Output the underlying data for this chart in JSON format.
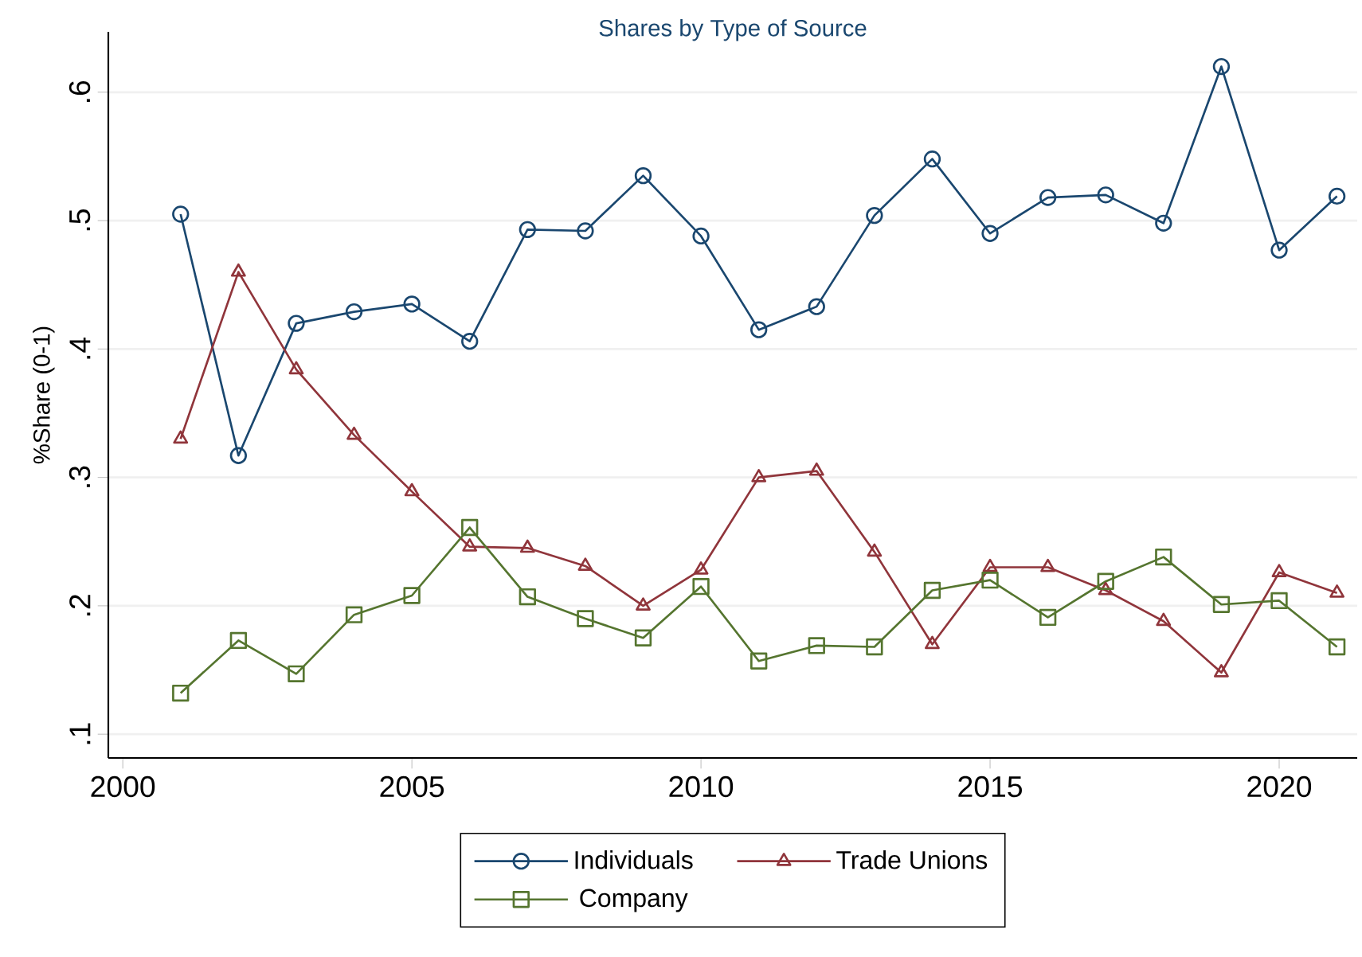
{
  "chart_data": {
    "type": "line",
    "title": "Shares by Type of Source",
    "ylabel": "%Share (0-1)",
    "x": [
      2001,
      2002,
      2003,
      2004,
      2005,
      2006,
      2007,
      2008,
      2009,
      2010,
      2011,
      2012,
      2013,
      2014,
      2015,
      2016,
      2017,
      2018,
      2019,
      2020,
      2021
    ],
    "xlim": [
      1999.75,
      2021.35
    ],
    "xticks": [
      2000,
      2005,
      2010,
      2015,
      2020
    ],
    "ylim": [
      0.0815,
      0.647
    ],
    "yticks": [
      {
        "value": 0.1,
        "label": ".1"
      },
      {
        "value": 0.2,
        "label": ".2"
      },
      {
        "value": 0.3,
        "label": ".3"
      },
      {
        "value": 0.4,
        "label": ".4"
      },
      {
        "value": 0.5,
        "label": ".5"
      },
      {
        "value": 0.6,
        "label": ".6"
      }
    ],
    "grid": "y",
    "legend": "bottom",
    "line_style": "solid",
    "series": [
      {
        "name": "Individuals",
        "color": "#1a476f",
        "marker": "circle",
        "values": [
          0.505,
          0.317,
          0.42,
          0.429,
          0.435,
          0.406,
          0.493,
          0.492,
          0.535,
          0.488,
          0.415,
          0.433,
          0.504,
          0.548,
          0.49,
          0.518,
          0.52,
          0.498,
          0.62,
          0.477,
          0.519
        ]
      },
      {
        "name": "Trade Unions",
        "color": "#90353b",
        "marker": "triangle",
        "values": [
          0.33,
          0.46,
          0.384,
          0.333,
          0.289,
          0.246,
          0.245,
          0.231,
          0.2,
          0.228,
          0.3,
          0.305,
          0.242,
          0.17,
          0.23,
          0.23,
          0.212,
          0.188,
          0.148,
          0.226,
          0.21
        ]
      },
      {
        "name": "Company",
        "color": "#55752f",
        "marker": "square",
        "values": [
          0.132,
          0.173,
          0.147,
          0.193,
          0.208,
          0.261,
          0.207,
          0.19,
          0.175,
          0.215,
          0.157,
          0.169,
          0.168,
          0.212,
          0.22,
          0.191,
          0.219,
          0.238,
          0.201,
          0.204,
          0.168
        ]
      }
    ]
  }
}
